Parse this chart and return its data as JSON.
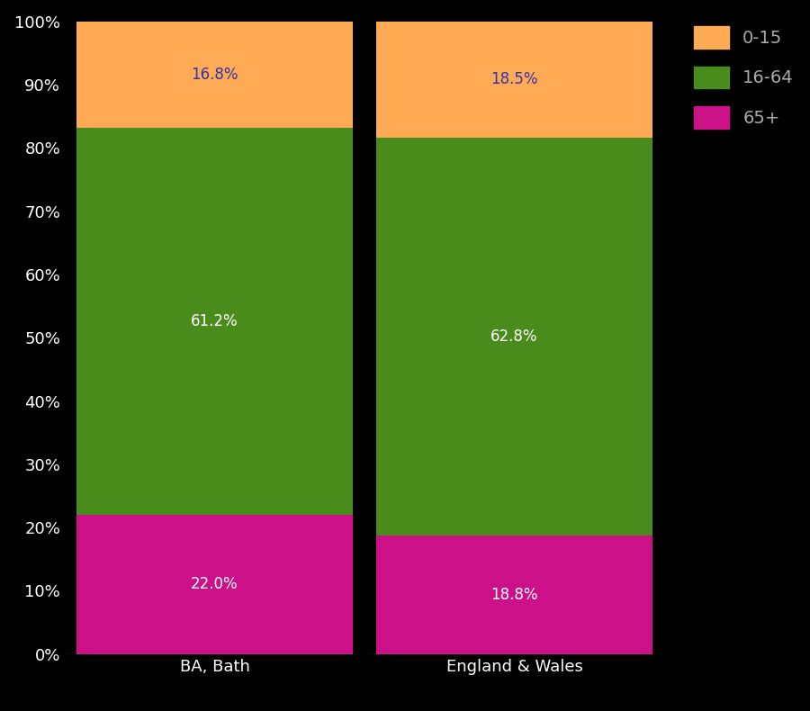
{
  "categories": [
    "BA, Bath",
    "England & Wales"
  ],
  "segments": {
    "65+": [
      22.0,
      18.8
    ],
    "16-64": [
      61.2,
      62.8
    ],
    "0-15": [
      16.8,
      18.5
    ]
  },
  "colors": {
    "65+": "#CC1188",
    "16-64": "#4a8c1c",
    "0-15": "#FFAA55"
  },
  "label_colors": {
    "65+": "white",
    "16-64": "white",
    "0-15": "#3333aa"
  },
  "background_color": "#000000",
  "axes_color": "#ffffff",
  "tick_label_color": "#aaaaaa",
  "legend_text_color": "#aaaaaa",
  "bar_width": 0.92,
  "ylim": [
    0,
    100
  ],
  "yticks": [
    0,
    10,
    20,
    30,
    40,
    50,
    60,
    70,
    80,
    90,
    100
  ],
  "ytick_labels": [
    "0%",
    "10%",
    "20%",
    "30%",
    "40%",
    "50%",
    "60%",
    "70%",
    "80%",
    "90%",
    "100%"
  ],
  "legend_labels": [
    "0-15",
    "16-64",
    "65+"
  ],
  "legend_colors": [
    "#FFAA55",
    "#4a8c1c",
    "#CC1188"
  ],
  "font_size": 13,
  "label_font_size": 12
}
